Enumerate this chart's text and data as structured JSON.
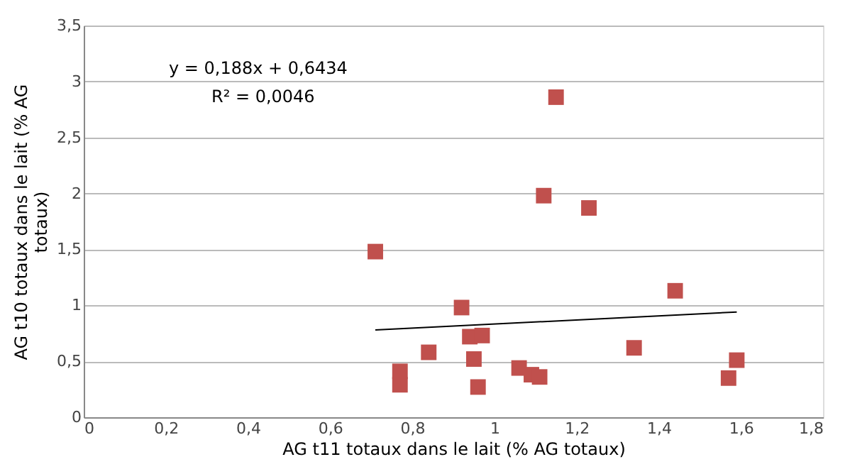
{
  "chart_data": {
    "type": "scatter",
    "xlabel": "AG t11 totaux dans le lait (% AG totaux)",
    "ylabel": "AG t10 totaux dans le lait (% AG totaux)",
    "annotations": [
      "y = 0,188x + 0,6434",
      "R² = 0,0046"
    ],
    "xlim": [
      0,
      1.8
    ],
    "xticks": [
      0,
      {
        "value": 0.2,
        "label": "0,2"
      },
      {
        "value": 0.4,
        "label": "0,4"
      },
      {
        "value": 0.6,
        "label": "0,6"
      },
      {
        "value": 0.8,
        "label": "0,8"
      },
      1,
      {
        "value": 1.2,
        "label": "1,2"
      },
      {
        "value": 1.4,
        "label": "1,4"
      },
      {
        "value": 1.6,
        "label": "1,6"
      },
      {
        "value": 1.8,
        "label": "1,8"
      }
    ],
    "ylim": [
      0,
      3.5
    ],
    "yticks": [
      0,
      {
        "value": 0.5,
        "label": "0,5"
      },
      1,
      {
        "value": 1.5,
        "label": "1,5"
      },
      2,
      {
        "value": 2.5,
        "label": "2,5"
      },
      3,
      {
        "value": 3.5,
        "label": "3,5"
      }
    ],
    "grid": "y",
    "series": [
      {
        "marker": "square",
        "color": "#c0504d",
        "x": [
          0.71,
          1.15,
          1.12,
          1.23,
          1.44,
          0.92,
          0.94,
          0.97,
          0.84,
          1.34,
          0.95,
          0.77,
          0.77,
          0.96,
          1.06,
          1.09,
          1.11,
          1.59,
          1.57
        ],
        "values": [
          1.48,
          2.86,
          1.98,
          1.87,
          1.13,
          0.98,
          0.72,
          0.73,
          0.58,
          0.62,
          0.52,
          0.41,
          0.29,
          0.27,
          0.44,
          0.38,
          0.36,
          0.51,
          0.35
        ]
      },
      {
        "type": "line",
        "color": "#000000",
        "x": [
          0.71,
          1.59
        ],
        "values": [
          0.78,
          0.94
        ]
      }
    ]
  }
}
